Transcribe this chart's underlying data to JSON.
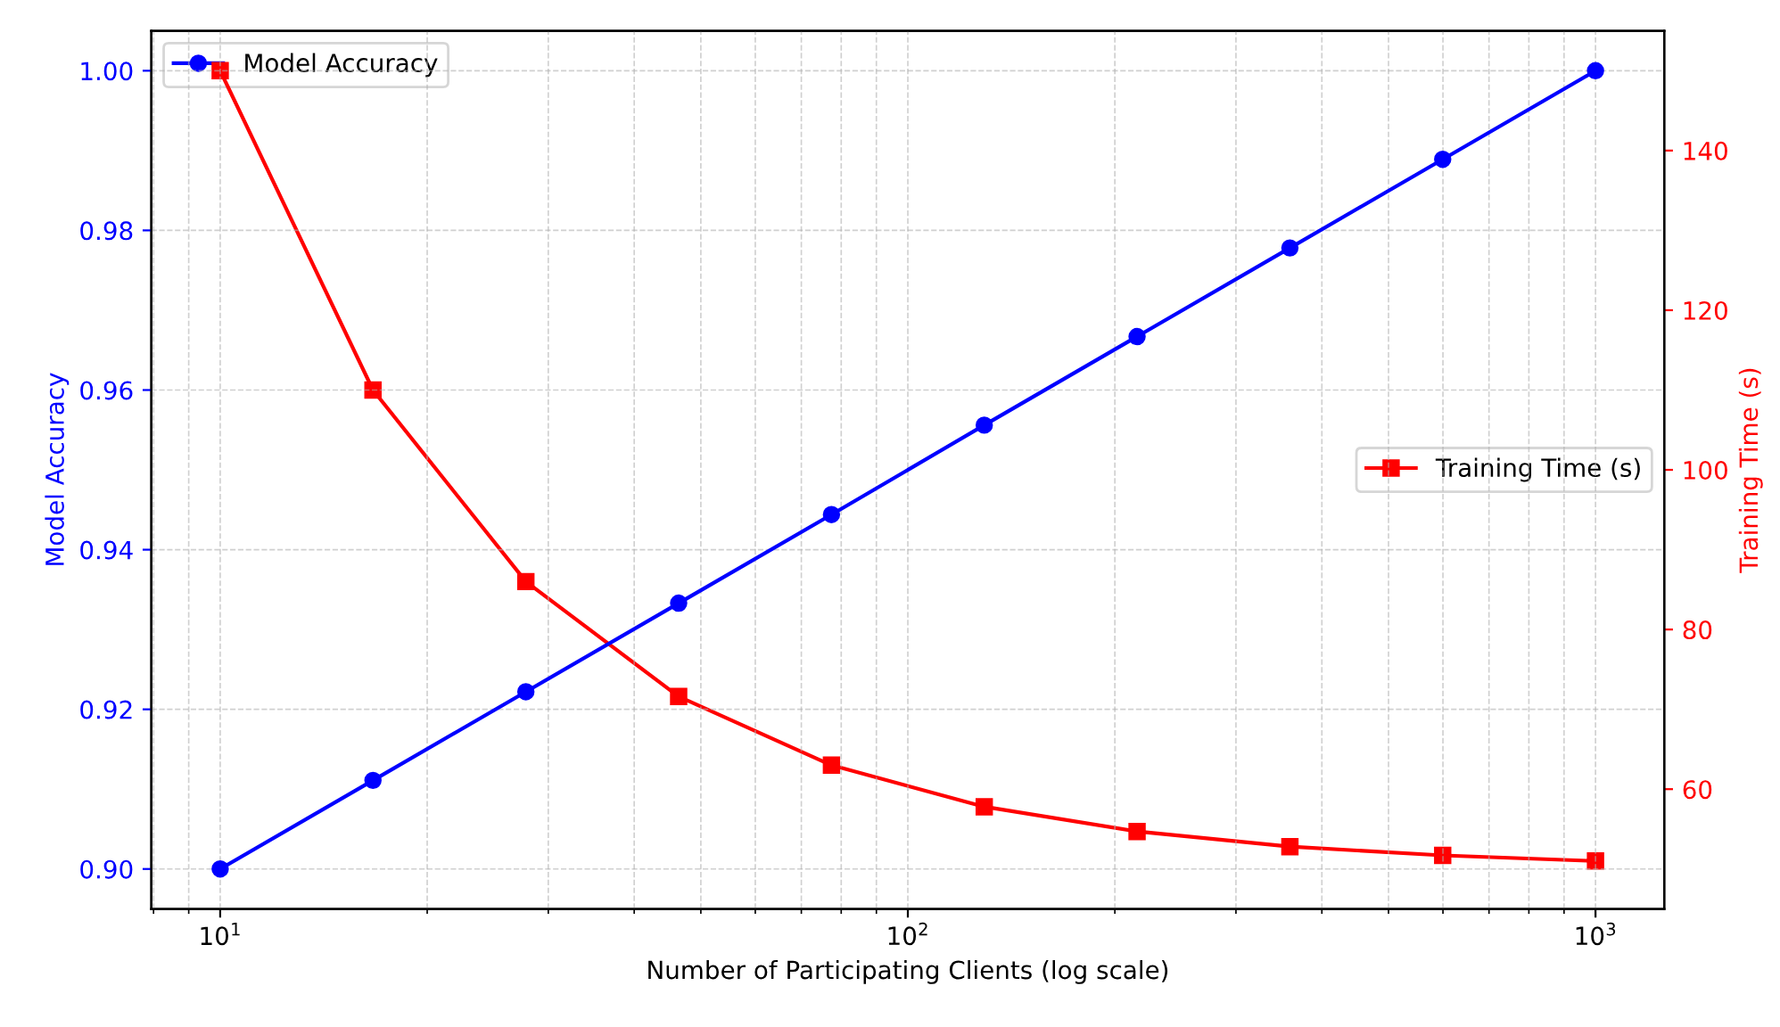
{
  "chart_data": {
    "type": "line",
    "xlabel": "Number of Participating Clients (log scale)",
    "ylabel": "Model Accuracy",
    "y2label": "Training Time (s)",
    "x": [
      10,
      16.68,
      27.83,
      46.42,
      77.43,
      129.15,
      215.44,
      359.38,
      599.48,
      1000
    ],
    "series": [
      {
        "name": "Model Accuracy",
        "color": "#0000ff",
        "marker": "circle",
        "values": [
          0.9,
          0.9111,
          0.9222,
          0.9333,
          0.9444,
          0.9556,
          0.9667,
          0.9778,
          0.9889,
          1.0
        ]
      },
      {
        "name": "Training Time (s)",
        "color": "#ff0000",
        "marker": "square",
        "axis": "y2",
        "values": [
          150,
          110,
          86,
          71.6,
          63,
          57.8,
          54.7,
          52.8,
          51.7,
          51.0
        ]
      }
    ],
    "log": "x",
    "xlim": [
      7.94,
      1259
    ],
    "xticks": [
      {
        "value": 10,
        "label": "10$^{1}$"
      },
      {
        "value": 100,
        "label": "10$^{2}$"
      },
      {
        "value": 1000,
        "label": "10$^{3}$"
      }
    ],
    "ylim": [
      0.895,
      1.005
    ],
    "yticks": [
      {
        "value": 0.9,
        "label": "0.90"
      },
      {
        "value": 0.92,
        "label": "0.92"
      },
      {
        "value": 0.94,
        "label": "0.94"
      },
      {
        "value": 0.96,
        "label": "0.96"
      },
      {
        "value": 0.98,
        "label": "0.98"
      },
      {
        "value": 1.0,
        "label": "1.00"
      }
    ],
    "y2lim": [
      45,
      155
    ],
    "y2ticks": [
      60,
      80,
      100,
      120,
      140
    ],
    "grid": true,
    "legend": "top left"
  }
}
